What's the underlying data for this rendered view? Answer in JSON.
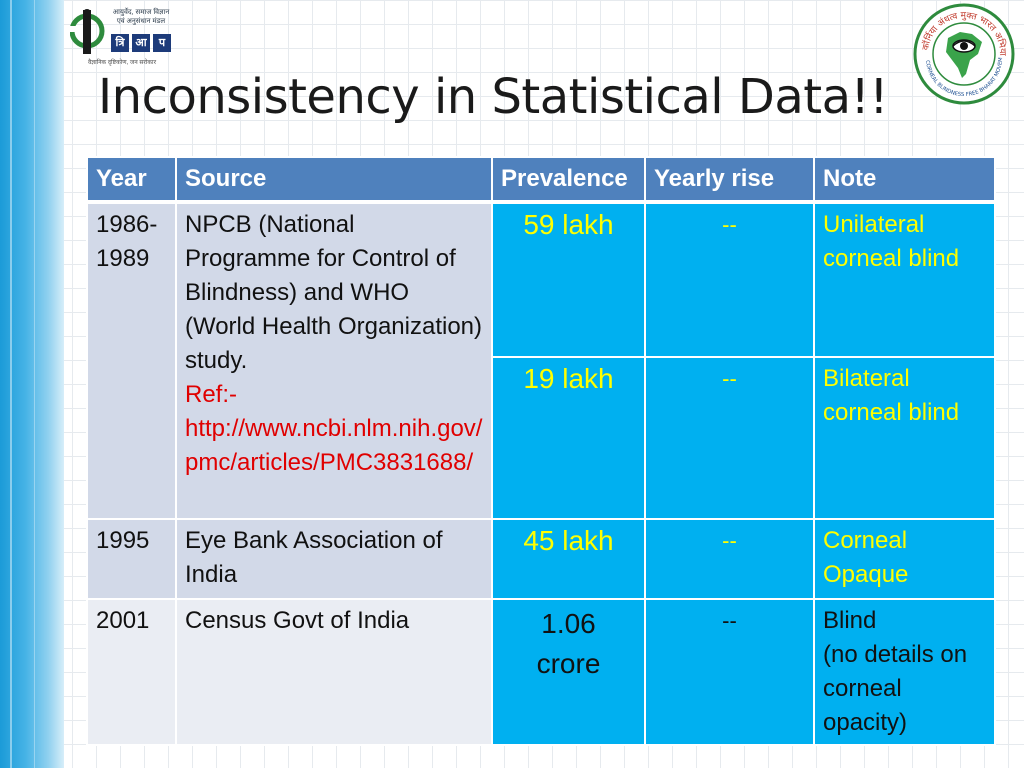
{
  "colors": {
    "header_bg": "#4f81bd",
    "highlight_cells": "#00b0f0",
    "highlight_text": "#ffff00",
    "reference_text": "#e00000",
    "row_alt_1": "#d2d9e8",
    "row_alt_2": "#eaedf3"
  },
  "logos": {
    "left": {
      "icon": "aligned-organization-emblem-icon",
      "text_line1": "आयुर्वेद, समाज विज्ञान",
      "text_line2": "एवं अनुसंधान मंडल",
      "brand": [
        "त्रि",
        "आ",
        "प"
      ],
      "tagline": "वैज्ञानिक दृष्टिकोण, जन सरोकार"
    },
    "right": {
      "icon": "eye-india-map-seal-icon",
      "ring_text": "कॉर्निया अंधत्व मुक्त भारत अभियान",
      "ring_text_en": "CORNEAL BLINDNESS FREE BHARAT MOVEMENT"
    }
  },
  "title": "Inconsistency in Statistical Data!!",
  "table": {
    "headers": {
      "year": "Year",
      "source": "Source",
      "prevalence": "Prevalence",
      "yearly_rise": "Yearly rise",
      "note": "Note"
    },
    "rows": [
      {
        "year": "1986-\n1989",
        "source": "NPCB (National Programme for Control of Blindness) and WHO (World Health Organization) study.",
        "ref_label": "Ref:-",
        "ref_url": "http://www.ncbi.nlm.nih.gov/pmc/articles/PMC3831688/",
        "sub": [
          {
            "prevalence": "59 lakh",
            "yearly_rise": "--",
            "note": "Unilateral corneal blind"
          },
          {
            "prevalence": "19 lakh",
            "yearly_rise": "--",
            "note": "Bilateral corneal blind"
          }
        ]
      },
      {
        "year": "1995",
        "source": "Eye Bank Association of India",
        "prevalence": "45 lakh",
        "yearly_rise": "--",
        "note": "Corneal Opaque"
      },
      {
        "year": "2001",
        "source": "Census Govt of India",
        "prevalence": "1.06 crore",
        "yearly_rise": "--",
        "note": "Blind\n(no details on corneal opacity)"
      }
    ]
  }
}
